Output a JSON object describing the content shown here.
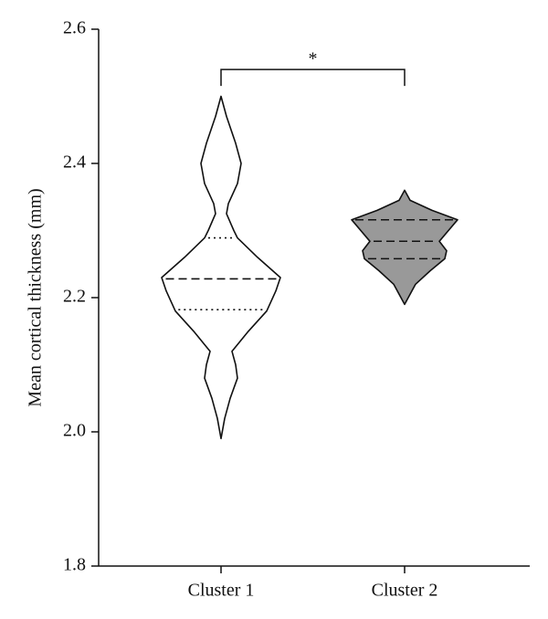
{
  "chart_data": {
    "type": "violin",
    "y_label": "Mean cortical thickness (mm)",
    "categories": [
      "Cluster 1",
      "Cluster 2"
    ],
    "ylim": [
      1.8,
      2.6
    ],
    "yticks": [
      1.8,
      {
        "value": 2.0,
        "label": "2.0"
      },
      2.2,
      2.4,
      2.6
    ],
    "series": [
      {
        "name": "Cluster 1",
        "color": "#ffffff",
        "quartile_line": "dotted",
        "median": 2.228,
        "q1": 2.182,
        "q3": 2.289,
        "density_y": [
          2.5,
          2.47,
          2.43,
          2.4,
          2.37,
          2.34,
          2.325,
          2.3,
          2.289,
          2.26,
          2.23,
          2.21,
          2.18,
          2.15,
          2.12,
          2.1,
          2.08,
          2.05,
          2.02,
          1.99
        ],
        "density": [
          0,
          6,
          16,
          22,
          18,
          8,
          6,
          14,
          18,
          40,
          65,
          60,
          50,
          30,
          12,
          16,
          18,
          10,
          4,
          0
        ]
      },
      {
        "name": "Cluster 2",
        "color": "#999999",
        "quartile_line": "dashed",
        "median": 2.284,
        "q1": 2.258,
        "q3": 2.316,
        "density_y": [
          2.36,
          2.345,
          2.33,
          2.316,
          2.3,
          2.284,
          2.27,
          2.258,
          2.24,
          2.22,
          2.2,
          2.19
        ],
        "density": [
          0,
          6,
          30,
          58,
          48,
          38,
          46,
          44,
          28,
          12,
          4,
          0
        ]
      }
    ],
    "annotations": [
      {
        "text": "*",
        "between": [
          0,
          1
        ],
        "y": 2.54
      }
    ]
  }
}
